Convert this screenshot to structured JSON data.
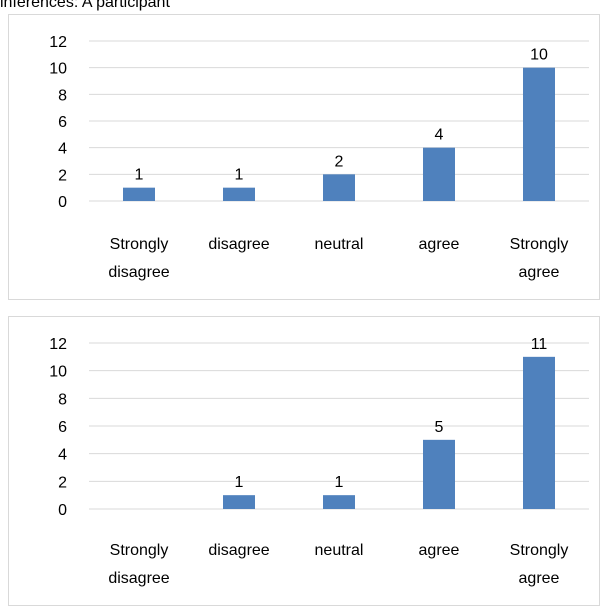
{
  "caption": "inferences: A participant",
  "colors": {
    "bar": "#4f81bd",
    "grid": "#d9d9d9",
    "border": "#d9d9d9"
  },
  "chart_data": [
    {
      "type": "bar",
      "categories": [
        [
          "Strongly",
          "disagree"
        ],
        [
          "disagree"
        ],
        [
          "neutral"
        ],
        [
          "agree"
        ],
        [
          "Strongly",
          "agree"
        ]
      ],
      "values": [
        1,
        1,
        2,
        4,
        10
      ],
      "data_labels": [
        "1",
        "1",
        "2",
        "4",
        "10"
      ],
      "yticks": [
        "0",
        "2",
        "4",
        "6",
        "8",
        "10",
        "12"
      ],
      "ylim": [
        0,
        12
      ],
      "grid": true,
      "legend": "none"
    },
    {
      "type": "bar",
      "categories": [
        [
          "Strongly",
          "disagree"
        ],
        [
          "disagree"
        ],
        [
          "neutral"
        ],
        [
          "agree"
        ],
        [
          "Strongly",
          "agree"
        ]
      ],
      "values": [
        0,
        1,
        1,
        5,
        11
      ],
      "data_labels": [
        "",
        "1",
        "1",
        "5",
        "11"
      ],
      "yticks": [
        "0",
        "2",
        "4",
        "6",
        "8",
        "10",
        "12"
      ],
      "ylim": [
        0,
        12
      ],
      "grid": true,
      "legend": "none"
    }
  ]
}
